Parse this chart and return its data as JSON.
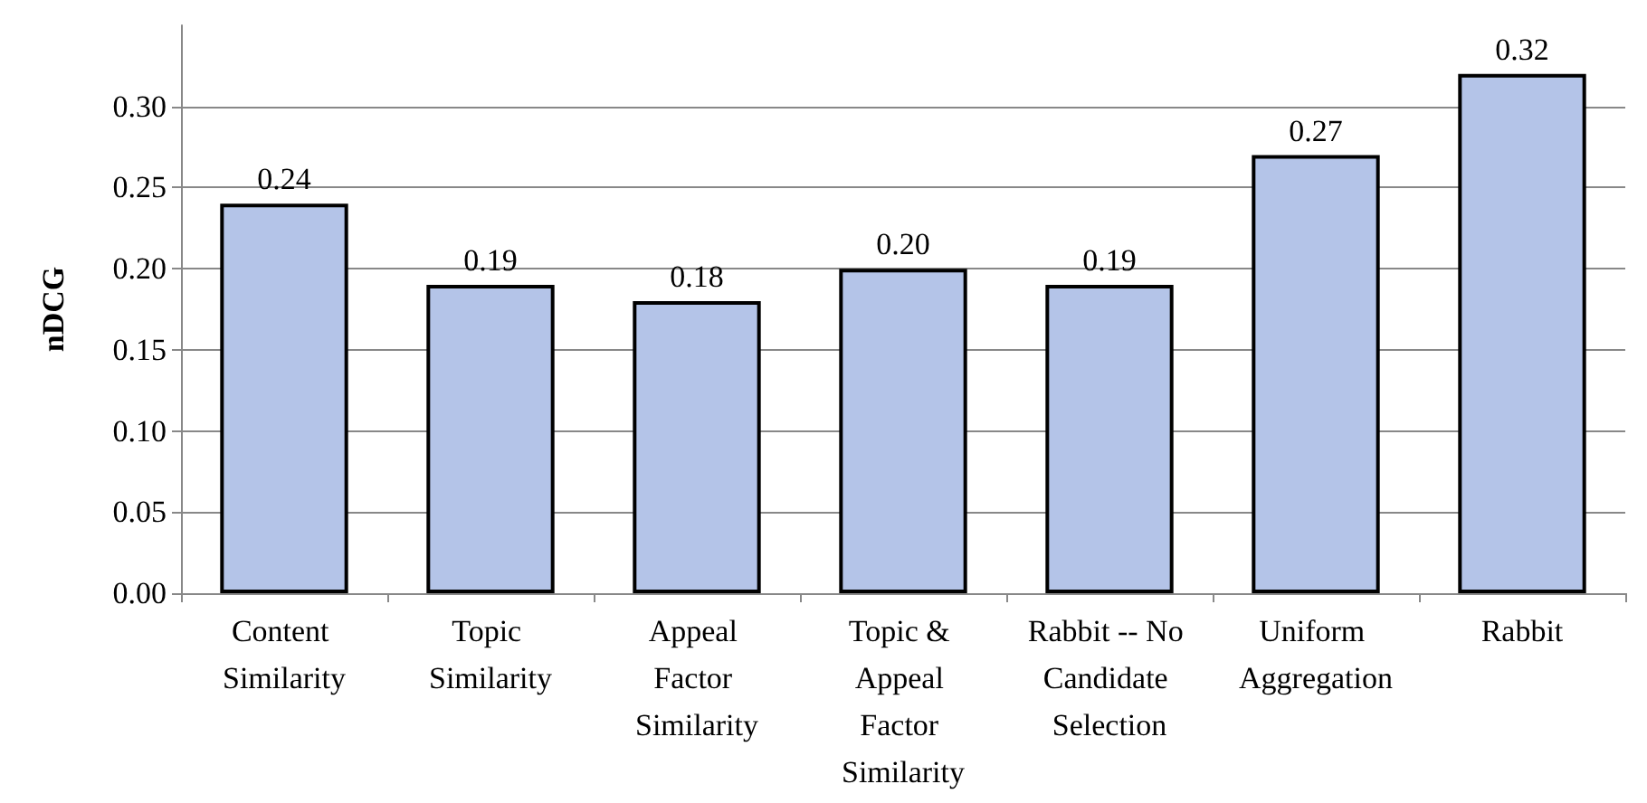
{
  "chart_data": {
    "type": "bar",
    "ylabel": "nDCG",
    "categories": [
      "Content Similarity",
      "Topic Similarity",
      "Appeal Factor Similarity",
      "Topic & Appeal Factor Similarity",
      "Rabbit -- No Candidate Selection",
      "Uniform Aggregation",
      "Rabbit"
    ],
    "values": [
      0.24,
      0.19,
      0.18,
      0.2,
      0.19,
      0.27,
      0.32
    ],
    "value_labels": [
      "0.24",
      "0.19",
      "0.18",
      "0.20",
      "0.19",
      "0.27",
      "0.32"
    ],
    "color": "#b4c4e8",
    "ylim": [
      0,
      0.35
    ],
    "yticks": [
      {
        "value": 0,
        "label": "0.00"
      },
      {
        "value": 0.05,
        "label": "0.05"
      },
      {
        "value": 0.1,
        "label": "0.10"
      },
      {
        "value": 0.15,
        "label": "0.15"
      },
      {
        "value": 0.2,
        "label": "0.20"
      },
      {
        "value": 0.25,
        "label": "0.25"
      },
      {
        "value": 0.3,
        "label": "0.30"
      }
    ],
    "grid": "y"
  }
}
